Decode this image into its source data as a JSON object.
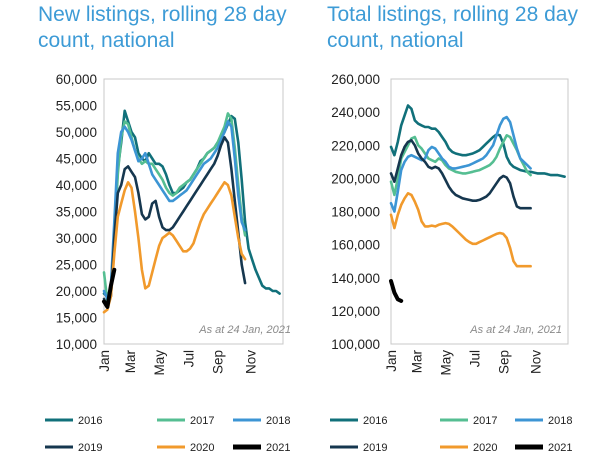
{
  "chart_data": [
    {
      "type": "line",
      "title": "New listings, rolling 28 day count, national",
      "xlabel": "",
      "ylabel": "",
      "ylim": [
        10000,
        60000
      ],
      "yticks": [
        "60,000",
        "55,000",
        "50,000",
        "45,000",
        "40,000",
        "35,000",
        "30,000",
        "25,000",
        "20,000",
        "15,000",
        "10,000"
      ],
      "xticks": [
        "Jan",
        "Mar",
        "May",
        "Jul",
        "Sep",
        "Nov"
      ],
      "xlim": [
        0,
        52
      ],
      "annotation": "As at 24 Jan, 2021",
      "grid": false,
      "legend_position": "bottom",
      "series": [
        {
          "name": "2016",
          "color": "#11707a",
          "x": [
            0,
            1,
            2,
            3,
            4,
            5,
            6,
            7,
            8,
            9,
            10,
            11,
            12,
            13,
            14,
            15,
            16,
            17,
            18,
            19,
            20,
            21,
            22,
            23,
            24,
            25,
            26,
            27,
            28,
            29,
            30,
            31,
            32,
            33,
            34,
            35,
            36,
            37,
            38,
            39,
            40,
            41,
            42,
            43,
            44,
            45,
            46,
            47,
            48,
            49,
            50,
            51
          ],
          "y": [
            19500,
            19000,
            20500,
            31000,
            43000,
            48000,
            54000,
            52000,
            50000,
            49000,
            46000,
            45000,
            44500,
            46000,
            45000,
            44000,
            44000,
            43500,
            42000,
            40000,
            38500,
            38500,
            39000,
            39500,
            40500,
            41000,
            42000,
            43000,
            44500,
            45000,
            46000,
            46500,
            47000,
            48000,
            49000,
            50000,
            51500,
            53000,
            52500,
            48000,
            41000,
            33000,
            28000,
            26000,
            24000,
            22500,
            21000,
            20500,
            20500,
            20000,
            20000,
            19500
          ]
        },
        {
          "name": "2017",
          "color": "#55be92",
          "x": [
            0,
            1,
            2,
            3,
            4,
            5,
            6,
            7,
            8,
            9,
            10,
            11,
            12,
            13,
            14,
            15,
            16,
            17,
            18,
            19,
            20,
            21,
            22,
            23,
            24,
            25,
            26,
            27,
            28,
            29,
            30,
            31,
            32,
            33,
            34,
            35,
            36,
            37,
            38,
            39,
            40,
            41
          ],
          "y": [
            23500,
            18000,
            20000,
            30000,
            42000,
            49000,
            52000,
            51500,
            49000,
            46500,
            45000,
            44000,
            44500,
            44000,
            44000,
            43000,
            42000,
            41000,
            39500,
            38500,
            38000,
            38500,
            39500,
            40000,
            40500,
            41000,
            42000,
            43000,
            44000,
            45000,
            46000,
            46500,
            47000,
            48000,
            49500,
            51000,
            53500,
            52500,
            47000,
            40000,
            34000,
            30500
          ]
        },
        {
          "name": "2018",
          "color": "#3c95d4",
          "x": [
            0,
            1,
            2,
            3,
            4,
            5,
            6,
            7,
            8,
            9,
            10,
            11,
            12,
            13,
            14,
            15,
            16,
            17,
            18,
            19,
            20,
            21,
            22,
            23,
            24,
            25,
            26,
            27,
            28,
            29,
            30,
            31,
            32,
            33,
            34,
            35,
            36,
            37,
            38,
            39,
            40,
            41
          ],
          "y": [
            20000,
            18500,
            21000,
            33000,
            46000,
            50000,
            51000,
            50000,
            48500,
            46500,
            44500,
            45000,
            46000,
            44000,
            42000,
            41000,
            40000,
            39000,
            38000,
            37000,
            37000,
            37500,
            38000,
            38500,
            39000,
            40000,
            41000,
            42000,
            43000,
            44000,
            44500,
            45000,
            46000,
            47000,
            48500,
            50000,
            52000,
            51000,
            45000,
            38000,
            33000,
            31500
          ]
        },
        {
          "name": "2019",
          "color": "#16374f",
          "x": [
            0,
            1,
            2,
            3,
            4,
            5,
            6,
            7,
            8,
            9,
            10,
            11,
            12,
            13,
            14,
            15,
            16,
            17,
            18,
            19,
            20,
            21,
            22,
            23,
            24,
            25,
            26,
            27,
            28,
            29,
            30,
            31,
            32,
            33,
            34,
            35,
            36,
            37,
            38,
            39,
            40,
            41
          ],
          "y": [
            18500,
            17000,
            19000,
            30000,
            38500,
            40000,
            43000,
            43500,
            42500,
            41500,
            38500,
            34500,
            33500,
            34000,
            36500,
            37000,
            34000,
            32000,
            31500,
            31500,
            32000,
            33000,
            34000,
            35000,
            36000,
            37000,
            38000,
            39000,
            40000,
            41000,
            42000,
            43000,
            44000,
            45500,
            47500,
            49000,
            48000,
            43000,
            37000,
            31000,
            25000,
            21500
          ]
        },
        {
          "name": "2020",
          "color": "#f19a2c",
          "x": [
            0,
            1,
            2,
            3,
            4,
            5,
            6,
            7,
            8,
            9,
            10,
            11,
            12,
            13,
            14,
            15,
            16,
            17,
            18,
            19,
            20,
            21,
            22,
            23,
            24,
            25,
            26,
            27,
            28,
            29,
            30,
            31,
            32,
            33,
            34,
            35,
            36,
            37,
            38,
            39,
            40,
            41
          ],
          "y": [
            16000,
            16500,
            19000,
            27000,
            34000,
            36500,
            39000,
            40500,
            39500,
            35000,
            30000,
            24000,
            20500,
            21000,
            23500,
            26000,
            28500,
            30000,
            30500,
            31000,
            30500,
            29500,
            28500,
            27500,
            27500,
            28000,
            29000,
            31000,
            33000,
            34500,
            35500,
            36500,
            37500,
            38500,
            39500,
            40500,
            40000,
            38000,
            34000,
            30000,
            27000,
            26000
          ]
        },
        {
          "name": "2021",
          "color": "#000000",
          "x": [
            0,
            1,
            2,
            3
          ],
          "y": [
            18000,
            17000,
            21000,
            24000
          ]
        }
      ]
    },
    {
      "type": "line",
      "title": "Total listings, rolling 28 day count, national",
      "xlabel": "",
      "ylabel": "",
      "ylim": [
        100000,
        260000
      ],
      "yticks": [
        "260,000",
        "240,000",
        "220,000",
        "200,000",
        "180,000",
        "160,000",
        "140,000",
        "120,000",
        "100,000"
      ],
      "xticks": [
        "Jan",
        "Mar",
        "May",
        "Jul",
        "Sep",
        "Nov"
      ],
      "xlim": [
        0,
        52
      ],
      "annotation": "As at 24 Jan, 2021",
      "grid": false,
      "legend_position": "bottom",
      "series": [
        {
          "name": "2016",
          "color": "#11707a",
          "x": [
            0,
            1,
            2,
            3,
            4,
            5,
            6,
            7,
            8,
            9,
            10,
            11,
            12,
            13,
            14,
            15,
            16,
            17,
            18,
            19,
            20,
            21,
            22,
            23,
            24,
            25,
            26,
            27,
            28,
            29,
            30,
            31,
            32,
            33,
            34,
            35,
            36,
            37,
            38,
            39,
            40,
            41,
            42,
            43,
            44,
            45,
            46,
            47,
            48,
            49,
            50,
            51
          ],
          "y": [
            219000,
            214000,
            222000,
            232000,
            238000,
            244000,
            242000,
            235000,
            233000,
            232000,
            231000,
            231000,
            230000,
            230000,
            228000,
            225000,
            222000,
            218000,
            216000,
            215000,
            214500,
            214000,
            214000,
            214500,
            215000,
            216000,
            217000,
            219000,
            221000,
            223000,
            225000,
            226500,
            226000,
            221000,
            213000,
            209000,
            207000,
            206000,
            205000,
            204500,
            204000,
            204000,
            203500,
            203000,
            203000,
            203000,
            202500,
            202000,
            202000,
            202000,
            201500,
            201000
          ]
        },
        {
          "name": "2017",
          "color": "#55be92",
          "x": [
            0,
            1,
            2,
            3,
            4,
            5,
            6,
            7,
            8,
            9,
            10,
            11,
            12,
            13,
            14,
            15,
            16,
            17,
            18,
            19,
            20,
            21,
            22,
            23,
            24,
            25,
            26,
            27,
            28,
            29,
            30,
            31,
            32,
            33,
            34,
            35,
            36,
            37,
            38,
            39,
            40,
            41
          ],
          "y": [
            198000,
            190000,
            200000,
            212000,
            216000,
            220000,
            224000,
            225000,
            220000,
            218000,
            215000,
            212000,
            211000,
            210000,
            212000,
            211000,
            208000,
            206000,
            205000,
            204000,
            203500,
            203000,
            203000,
            203500,
            204000,
            204500,
            205000,
            206000,
            207000,
            208000,
            210000,
            213000,
            218000,
            222000,
            226000,
            225000,
            221000,
            217000,
            212000,
            208000,
            204000,
            202000
          ]
        },
        {
          "name": "2018",
          "color": "#3c95d4",
          "x": [
            0,
            1,
            2,
            3,
            4,
            5,
            6,
            7,
            8,
            9,
            10,
            11,
            12,
            13,
            14,
            15,
            16,
            17,
            18,
            19,
            20,
            21,
            22,
            23,
            24,
            25,
            26,
            27,
            28,
            29,
            30,
            31,
            32,
            33,
            34,
            35,
            36,
            37,
            38,
            39,
            40,
            41
          ],
          "y": [
            185000,
            180000,
            192000,
            205000,
            210000,
            213000,
            214000,
            213000,
            212000,
            211000,
            212000,
            217000,
            219000,
            218000,
            215000,
            212000,
            210000,
            207000,
            206000,
            206000,
            206500,
            207000,
            207500,
            208000,
            209000,
            210000,
            211000,
            212000,
            214000,
            217000,
            220000,
            226000,
            232000,
            236000,
            237000,
            234000,
            226000,
            218000,
            212000,
            210000,
            208000,
            206000
          ]
        },
        {
          "name": "2019",
          "color": "#16374f",
          "x": [
            0,
            1,
            2,
            3,
            4,
            5,
            6,
            7,
            8,
            9,
            10,
            11,
            12,
            13,
            14,
            15,
            16,
            17,
            18,
            19,
            20,
            21,
            22,
            23,
            24,
            25,
            26,
            27,
            28,
            29,
            30,
            31,
            32,
            33,
            34,
            35,
            36,
            37,
            38,
            39,
            40,
            41
          ],
          "y": [
            203000,
            198000,
            206000,
            214000,
            219000,
            222000,
            223000,
            220000,
            215000,
            212000,
            210000,
            207000,
            206000,
            207000,
            206000,
            203000,
            199000,
            195000,
            192000,
            190000,
            189000,
            188000,
            187500,
            187000,
            186500,
            186500,
            187000,
            188000,
            189000,
            191000,
            194000,
            197000,
            200000,
            201500,
            200500,
            197000,
            189000,
            183000,
            182000,
            182000,
            182000,
            182000
          ]
        },
        {
          "name": "2020",
          "color": "#f19a2c",
          "x": [
            0,
            1,
            2,
            3,
            4,
            5,
            6,
            7,
            8,
            9,
            10,
            11,
            12,
            13,
            14,
            15,
            16,
            17,
            18,
            19,
            20,
            21,
            22,
            23,
            24,
            25,
            26,
            27,
            28,
            29,
            30,
            31,
            32,
            33,
            34,
            35,
            36,
            37,
            38,
            39,
            40,
            41
          ],
          "y": [
            178000,
            170000,
            178000,
            184000,
            188000,
            191000,
            190000,
            186000,
            181000,
            174000,
            171000,
            171000,
            171500,
            171000,
            172000,
            172500,
            173000,
            172500,
            171000,
            169000,
            167000,
            165000,
            163000,
            161500,
            160500,
            160500,
            161500,
            162500,
            163500,
            164500,
            165500,
            166500,
            167000,
            166500,
            164000,
            158000,
            150000,
            147000,
            147000,
            147000,
            147000,
            147000
          ]
        },
        {
          "name": "2021",
          "color": "#000000",
          "x": [
            0,
            1,
            2,
            3
          ],
          "y": [
            138000,
            131000,
            127000,
            126000
          ]
        }
      ]
    }
  ],
  "titles": {
    "left": "New listings, rolling 28 day count, national",
    "right": "Total listings, rolling 28 day count, national"
  }
}
